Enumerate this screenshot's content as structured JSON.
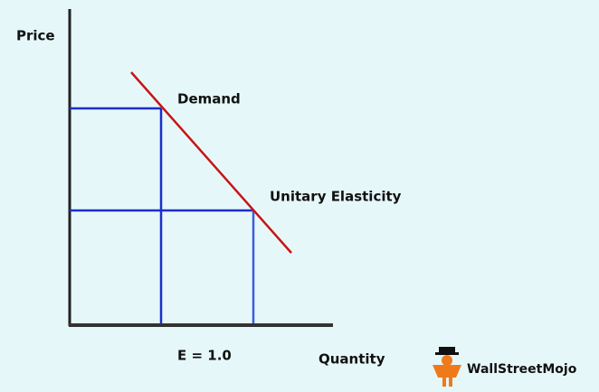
{
  "axes": {
    "y_label": "Price",
    "x_label": "Quantity"
  },
  "curve": {
    "label": "Demand"
  },
  "point": {
    "label": "Unitary Elasticity"
  },
  "formula": "E = 1.0",
  "brand": "WallStreetMojo"
}
